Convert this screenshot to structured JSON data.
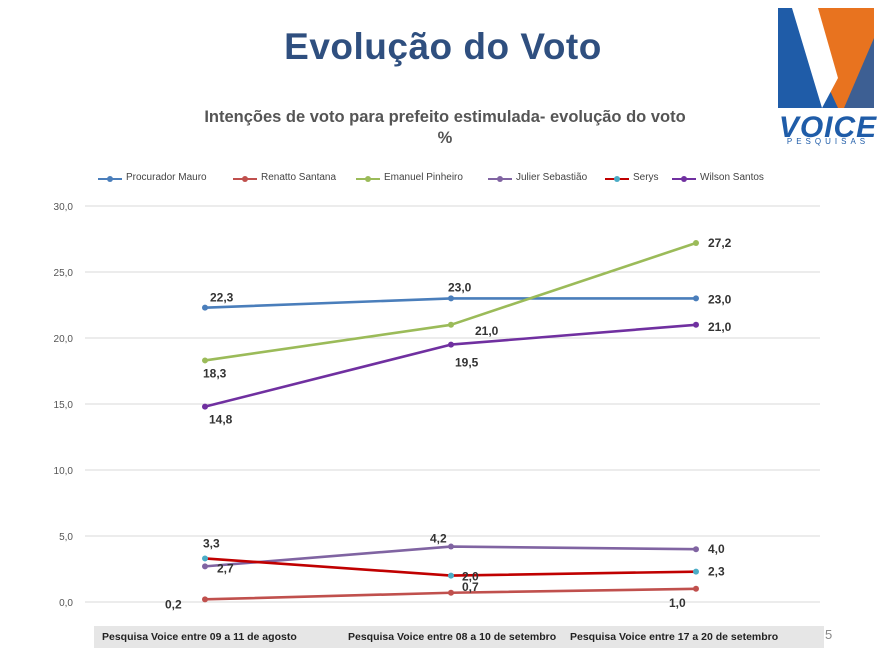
{
  "slide": {
    "title": "Evolução do Voto",
    "page_number": "5"
  },
  "logo": {
    "brand": "VOICE",
    "subtitle": "PESQUISAS",
    "colors": {
      "blue": "#1f5ca8",
      "orange": "#e8731f"
    }
  },
  "footer": {
    "labels": [
      "Pesquisa Voice entre 09 a 11 de agosto",
      "Pesquisa Voice entre 08 a 10  de setembro",
      "Pesquisa Voice entre 17 a 20 de setembro"
    ]
  },
  "chart_data": {
    "type": "line",
    "title": "Intenções de voto para prefeito estimulada- evolução do voto",
    "title_line2": "%",
    "x": [
      "Pesquisa Voice entre 09 a 11 de agosto",
      "Pesquisa Voice entre 08 a 10  de setembro",
      "Pesquisa Voice entre 17 a 20 de setembro"
    ],
    "ylim": [
      0,
      30
    ],
    "yticks": [
      "0,0",
      "5,0",
      "10,0",
      "15,0",
      "20,0",
      "25,0",
      "30,0"
    ],
    "grid": true,
    "legend_position": "top",
    "series": [
      {
        "name": "Procurador Mauro",
        "color": "#4a7ebb",
        "values": [
          22.3,
          23.0,
          23.0
        ],
        "labels": [
          "22,3",
          "23,0",
          "23,0"
        ]
      },
      {
        "name": "Renatto Santana",
        "color": "#c0504d",
        "values": [
          0.2,
          0.7,
          1.0
        ],
        "labels": [
          "0,2",
          "0,7",
          "1,0"
        ]
      },
      {
        "name": "Emanuel Pinheiro",
        "color": "#9bbb59",
        "values": [
          18.3,
          21.0,
          27.2
        ],
        "labels": [
          "18,3",
          "21,0",
          "27,2"
        ]
      },
      {
        "name": "Julier Sebastião",
        "color": "#8064a2",
        "values": [
          2.7,
          4.2,
          4.0
        ],
        "labels": [
          "2,7",
          "4,2",
          "4,0"
        ]
      },
      {
        "name": "Serys",
        "color": "#4bacc6",
        "values": [
          3.3,
          2.0,
          2.3
        ],
        "labels": [
          "3,3",
          "2,0",
          "2,3"
        ]
      },
      {
        "name": "Wilson Santos",
        "color": "#7030a0",
        "values": [
          14.8,
          19.5,
          21.0
        ],
        "labels": [
          "14,8",
          "19,5",
          "21,0"
        ]
      }
    ],
    "line_overrides": {
      "Serys": "#c00000"
    }
  }
}
